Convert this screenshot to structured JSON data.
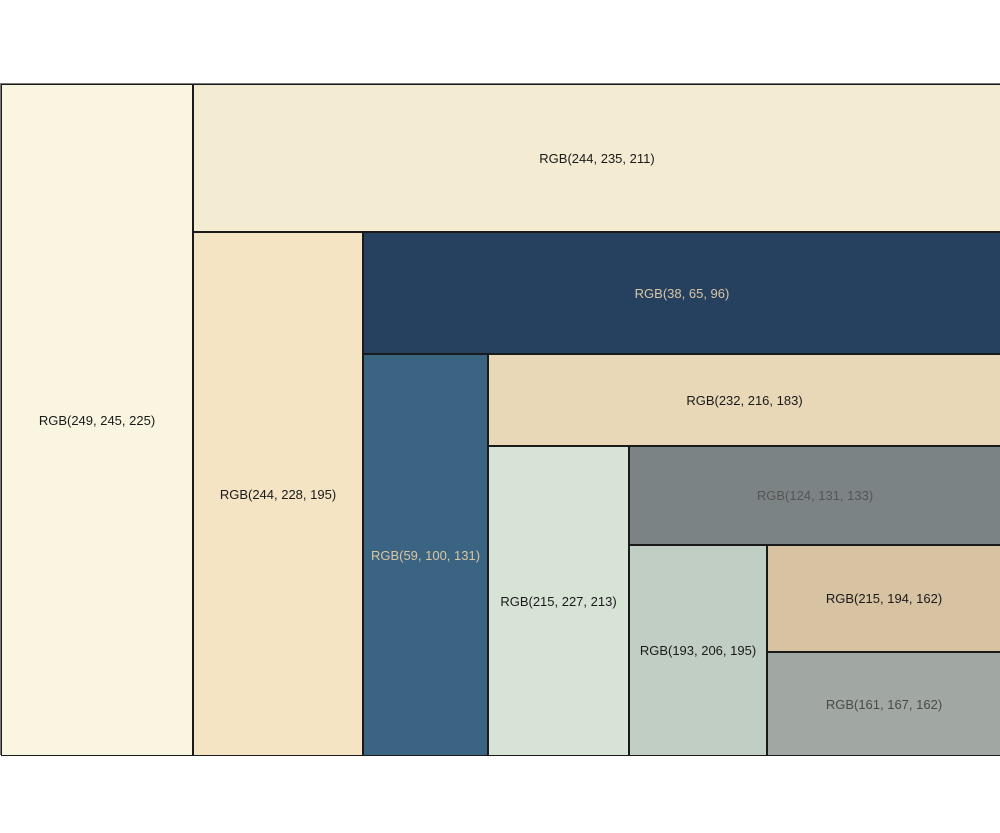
{
  "chart_data": {
    "type": "treemap",
    "tiles": [
      {
        "label": "RGB(249, 245, 225)",
        "color": "#f9f5e1",
        "text_color": "#1a1a1a"
      },
      {
        "label": "RGB(244, 235, 211)",
        "color": "#f4ebd3",
        "text_color": "#1a1a1a"
      },
      {
        "label": "RGB(244, 228, 195)",
        "color": "#f4e4c3",
        "text_color": "#1a1a1a"
      },
      {
        "label": "RGB(38, 65, 96)",
        "color": "#264160",
        "text_color": "#d9c6a3"
      },
      {
        "label": "RGB(59, 100, 131)",
        "color": "#3b6483",
        "text_color": "#d9c6a3"
      },
      {
        "label": "RGB(232, 216, 183)",
        "color": "#e8d8b7",
        "text_color": "#1a1a1a"
      },
      {
        "label": "RGB(215, 227, 213)",
        "color": "#d7e3d5",
        "text_color": "#1a1a1a"
      },
      {
        "label": "RGB(124, 131, 133)",
        "color": "#7c8385",
        "text_color": "#555555"
      },
      {
        "label": "RGB(193, 206, 195)",
        "color": "#c1cec3",
        "text_color": "#1a1a1a"
      },
      {
        "label": "RGB(215, 194, 162)",
        "color": "#d7c2a2",
        "text_color": "#1a1a1a"
      },
      {
        "label": "RGB(161, 167, 162)",
        "color": "#a1a7a2",
        "text_color": "#4a4a4a"
      }
    ]
  }
}
